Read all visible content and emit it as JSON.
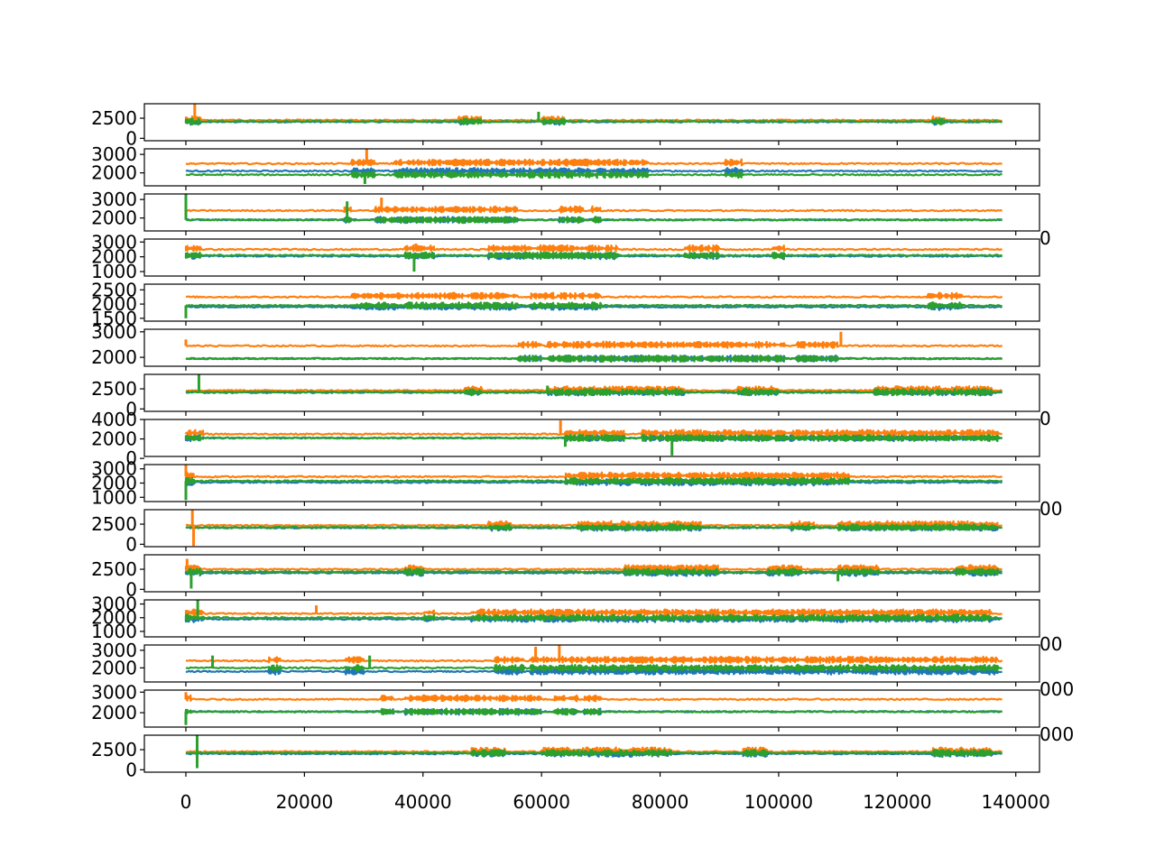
{
  "chart_data": {
    "type": "line",
    "layout": "15 vertically stacked subplots sharing one x-axis",
    "series_colors": [
      "#1f77b4",
      "#ff7f0e",
      "#2ca02c"
    ],
    "grid": false,
    "legend": "none",
    "title": "",
    "xlabel": "",
    "xlim": [
      -7000,
      144000
    ],
    "x_ticks": [
      0,
      20000,
      40000,
      60000,
      80000,
      100000,
      120000,
      140000
    ],
    "x_tick_labels": [
      "0",
      "20000",
      "40000",
      "60000",
      "80000",
      "100000",
      "120000",
      "140000"
    ],
    "subplots": [
      {
        "ylim": [
          -300,
          4300
        ],
        "yticks": [
          0,
          2500
        ],
        "ytick_labels": [
          "0",
          "2500"
        ],
        "base": [
          2050,
          2250,
          2100
        ],
        "burst_regions": [
          [
            0,
            2500
          ],
          [
            46000,
            50000
          ],
          [
            60000,
            64000
          ],
          [
            126000,
            128000
          ]
        ],
        "spikes": [
          [
            1500,
            4300,
            1
          ],
          [
            59500,
            3300,
            2
          ]
        ]
      },
      {
        "ylim": [
          1300,
          3300
        ],
        "yticks": [
          2000,
          3000
        ],
        "ytick_labels": [
          "2000",
          "3000"
        ],
        "base": [
          2100,
          2500,
          1900
        ],
        "burst_regions": [
          [
            28000,
            32000
          ],
          [
            35000,
            78000
          ],
          [
            91000,
            94000
          ]
        ],
        "spikes": [
          [
            30500,
            3300,
            1
          ],
          [
            30200,
            1400,
            2
          ]
        ]
      },
      {
        "ylim": [
          1300,
          3300
        ],
        "yticks": [
          2000,
          3000
        ],
        "ytick_labels": [
          "2000",
          "3000"
        ],
        "base": [
          1900,
          2400,
          1900
        ],
        "burst_regions": [
          [
            26500,
            28000
          ],
          [
            32000,
            56000
          ],
          [
            63000,
            67000
          ],
          [
            68500,
            70000
          ]
        ],
        "spikes": [
          [
            0,
            3300,
            2
          ],
          [
            27200,
            2900,
            2
          ],
          [
            33000,
            3100,
            1
          ]
        ]
      },
      {
        "ylim": [
          700,
          3200
        ],
        "yticks": [
          1000,
          2000,
          3000
        ],
        "ytick_labels": [
          "1000",
          "2000",
          "3000"
        ],
        "base": [
          2050,
          2500,
          2100
        ],
        "burst_regions": [
          [
            0,
            2500
          ],
          [
            37000,
            42000
          ],
          [
            51000,
            73000
          ],
          [
            84000,
            90000
          ],
          [
            99000,
            101000
          ]
        ],
        "spikes": [
          [
            38500,
            1000,
            2
          ],
          [
            38800,
            2900,
            1
          ]
        ]
      },
      {
        "ylim": [
          1400,
          2700
        ],
        "yticks": [
          1500,
          2000,
          2500
        ],
        "ytick_labels": [
          "1500",
          "2000",
          "2500"
        ],
        "base": [
          1900,
          2250,
          1950
        ],
        "burst_regions": [
          [
            28000,
            33000
          ],
          [
            33000,
            56000
          ],
          [
            58000,
            62000
          ],
          [
            62500,
            70000
          ],
          [
            125000,
            131000
          ]
        ],
        "spikes": [
          [
            0,
            1500,
            2
          ]
        ]
      },
      {
        "ylim": [
          1650,
          3100
        ],
        "yticks": [
          2000,
          3000
        ],
        "ytick_labels": [
          "2000",
          "3000"
        ],
        "base": [
          1950,
          2450,
          1950
        ],
        "burst_regions": [
          [
            56000,
            60000
          ],
          [
            61000,
            101000
          ],
          [
            103000,
            110000
          ]
        ],
        "spikes": [
          [
            110500,
            3000,
            1
          ],
          [
            0,
            2700,
            1
          ]
        ]
      },
      {
        "ylim": [
          -300,
          4300
        ],
        "yticks": [
          0,
          2500
        ],
        "ytick_labels": [
          "0",
          "2500"
        ],
        "base": [
          2050,
          2300,
          2100
        ],
        "burst_regions": [
          [
            47000,
            50000
          ],
          [
            61000,
            84000
          ],
          [
            93000,
            100000
          ],
          [
            116000,
            136000
          ]
        ],
        "spikes": [
          [
            2200,
            4300,
            2
          ],
          [
            61000,
            2900,
            2
          ]
        ]
      },
      {
        "ylim": [
          200,
          4000
        ],
        "yticks": [
          0,
          2000,
          4000
        ],
        "ytick_labels": [
          "0",
          "2000",
          "4000"
        ],
        "base": [
          2100,
          2500,
          2100
        ],
        "burst_regions": [
          [
            0,
            3000
          ],
          [
            64000,
            74000
          ],
          [
            77000,
            137000
          ]
        ],
        "spikes": [
          [
            63200,
            3900,
            1
          ],
          [
            82000,
            300,
            2
          ],
          [
            64000,
            1200,
            2
          ]
        ]
      },
      {
        "ylim": [
          700,
          3300
        ],
        "yticks": [
          1000,
          2000,
          3000
        ],
        "ytick_labels": [
          "1000",
          "2000",
          "3000"
        ],
        "base": [
          2050,
          2450,
          2150
        ],
        "burst_regions": [
          [
            0,
            1500
          ],
          [
            64000,
            112000
          ]
        ],
        "spikes": [
          [
            0,
            3300,
            1
          ],
          [
            0,
            800,
            2
          ]
        ]
      },
      {
        "ylim": [
          -300,
          4300
        ],
        "yticks": [
          0,
          2500
        ],
        "ytick_labels": [
          "0",
          "2500"
        ],
        "base": [
          2050,
          2350,
          2100
        ],
        "burst_regions": [
          [
            51000,
            55000
          ],
          [
            66000,
            87000
          ],
          [
            102000,
            106000
          ],
          [
            110000,
            137000
          ]
        ],
        "spikes": [
          [
            1100,
            4300,
            1
          ],
          [
            1300,
            -200,
            1
          ]
        ]
      },
      {
        "ylim": [
          -300,
          4300
        ],
        "yticks": [
          0,
          2500
        ],
        "ytick_labels": [
          "0",
          "2500"
        ],
        "base": [
          2050,
          2500,
          2200
        ],
        "burst_regions": [
          [
            0,
            2500
          ],
          [
            37000,
            40000
          ],
          [
            74000,
            90000
          ],
          [
            98000,
            104000
          ],
          [
            110000,
            117000
          ],
          [
            130000,
            137000
          ]
        ],
        "spikes": [
          [
            200,
            3800,
            1
          ],
          [
            900,
            100,
            2
          ],
          [
            110000,
            1000,
            2
          ]
        ]
      },
      {
        "ylim": [
          600,
          3300
        ],
        "yticks": [
          1000,
          2000,
          3000
        ],
        "ytick_labels": [
          "1000",
          "2000",
          "3000"
        ],
        "base": [
          1900,
          2300,
          2000
        ],
        "burst_regions": [
          [
            0,
            3000
          ],
          [
            40000,
            42000
          ],
          [
            48000,
            136000
          ]
        ],
        "spikes": [
          [
            2000,
            3300,
            2
          ],
          [
            22000,
            2900,
            1
          ]
        ]
      },
      {
        "ylim": [
          1200,
          3300
        ],
        "yticks": [
          2000,
          3000
        ],
        "ytick_labels": [
          "2000",
          "3000"
        ],
        "base": [
          1800,
          2400,
          2000
        ],
        "burst_regions": [
          [
            14000,
            16000
          ],
          [
            27000,
            30000
          ],
          [
            52000,
            57000
          ],
          [
            58000,
            137000
          ]
        ],
        "spikes": [
          [
            59000,
            3200,
            1
          ],
          [
            63000,
            3300,
            1
          ],
          [
            4500,
            2700,
            2
          ],
          [
            31000,
            2700,
            2
          ]
        ]
      },
      {
        "ylim": [
          1300,
          3100
        ],
        "yticks": [
          2000,
          3000
        ],
        "ytick_labels": [
          "2000",
          "3000"
        ],
        "base": [
          2050,
          2650,
          2050
        ],
        "burst_regions": [
          [
            0,
            1000
          ],
          [
            33000,
            35000
          ],
          [
            37000,
            60000
          ],
          [
            62000,
            66000
          ],
          [
            67000,
            70000
          ]
        ],
        "spikes": [
          [
            0,
            1400,
            2
          ],
          [
            0,
            3000,
            1
          ]
        ]
      },
      {
        "ylim": [
          -300,
          4300
        ],
        "yticks": [
          0,
          2500
        ],
        "ytick_labels": [
          "0",
          "2500"
        ],
        "base": [
          2000,
          2250,
          2100
        ],
        "burst_regions": [
          [
            48000,
            54000
          ],
          [
            60000,
            82000
          ],
          [
            94000,
            98000
          ],
          [
            126000,
            136000
          ]
        ],
        "spikes": [
          [
            1900,
            4300,
            2
          ],
          [
            1900,
            200,
            2
          ]
        ]
      }
    ],
    "overflow_labels": [
      {
        "subplot": 3,
        "text": "0"
      },
      {
        "subplot": 7,
        "text": "0"
      },
      {
        "subplot": 9,
        "text": "00"
      },
      {
        "subplot": 12,
        "text": "00"
      },
      {
        "subplot": 13,
        "text": "000"
      },
      {
        "subplot": 14,
        "text": "000"
      }
    ]
  }
}
